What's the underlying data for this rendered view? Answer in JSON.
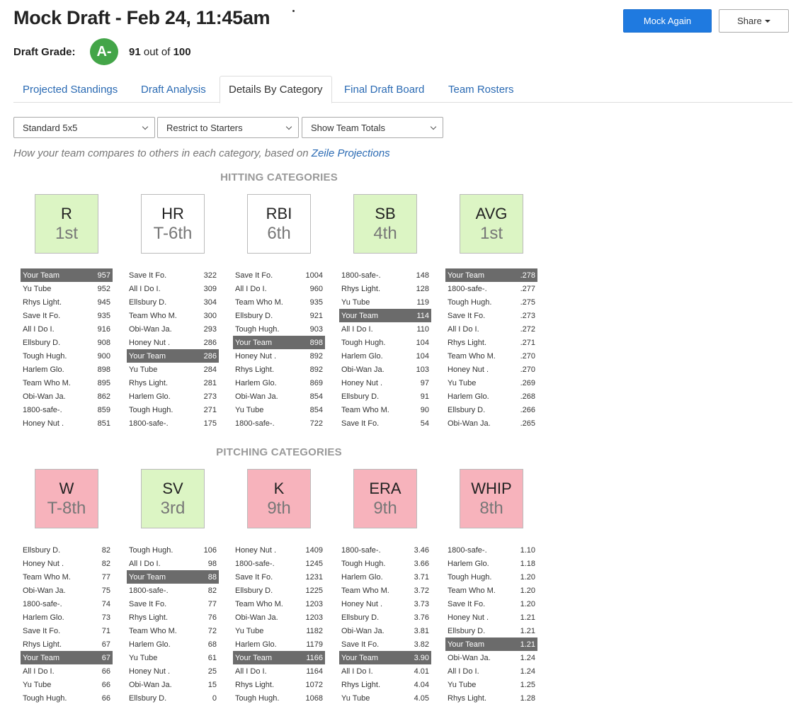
{
  "header": {
    "title": "Mock Draft - Feb 24, 11:45am",
    "mock_again_label": "Mock Again",
    "share_label": "Share"
  },
  "grade": {
    "label": "Draft Grade:",
    "letter": "A-",
    "score": "91",
    "out_of_text": "out of",
    "max": "100",
    "badge_color": "#43a548"
  },
  "tabs": [
    {
      "label": "Projected Standings",
      "active": false
    },
    {
      "label": "Draft Analysis",
      "active": false
    },
    {
      "label": "Details By Category",
      "active": true
    },
    {
      "label": "Final Draft Board",
      "active": false
    },
    {
      "label": "Team Rosters",
      "active": false
    }
  ],
  "filters": {
    "format": "Standard 5x5",
    "roster": "Restrict to Starters",
    "totals": "Show Team Totals"
  },
  "description": {
    "text": "How your team compares to others in each category, based on",
    "link": "Zeile Projections"
  },
  "colors": {
    "good": "#dcf5c4",
    "bad": "#f7b3bc",
    "neutral": "#ffffff",
    "your_team_row": "#6b6b6b",
    "link": "#2a6ab3",
    "primary_button": "#1f7ae0"
  },
  "hitting": {
    "heading": "HITTING CATEGORIES",
    "categories": [
      {
        "abbr": "R",
        "rank": "1st",
        "status": "good",
        "rows": [
          [
            "Your Team",
            "957"
          ],
          [
            "Yu Tube",
            "952"
          ],
          [
            "Rhys Light.",
            "945"
          ],
          [
            "Save It Fo.",
            "935"
          ],
          [
            "All I Do I.",
            "916"
          ],
          [
            "Ellsbury D.",
            "908"
          ],
          [
            "Tough Hugh.",
            "900"
          ],
          [
            "Harlem Glo.",
            "898"
          ],
          [
            "Team Who M.",
            "895"
          ],
          [
            "Obi-Wan Ja.",
            "862"
          ],
          [
            "1800-safe-.",
            "859"
          ],
          [
            "Honey Nut .",
            "851"
          ]
        ]
      },
      {
        "abbr": "HR",
        "rank": "T-6th",
        "status": "neutral",
        "rows": [
          [
            "Save It Fo.",
            "322"
          ],
          [
            "All I Do I.",
            "309"
          ],
          [
            "Ellsbury D.",
            "304"
          ],
          [
            "Team Who M.",
            "300"
          ],
          [
            "Obi-Wan Ja.",
            "293"
          ],
          [
            "Honey Nut .",
            "286"
          ],
          [
            "Your Team",
            "286"
          ],
          [
            "Yu Tube",
            "284"
          ],
          [
            "Rhys Light.",
            "281"
          ],
          [
            "Harlem Glo.",
            "273"
          ],
          [
            "Tough Hugh.",
            "271"
          ],
          [
            "1800-safe-.",
            "175"
          ]
        ]
      },
      {
        "abbr": "RBI",
        "rank": "6th",
        "status": "neutral",
        "rows": [
          [
            "Save It Fo.",
            "1004"
          ],
          [
            "All I Do I.",
            "960"
          ],
          [
            "Team Who M.",
            "935"
          ],
          [
            "Ellsbury D.",
            "921"
          ],
          [
            "Tough Hugh.",
            "903"
          ],
          [
            "Your Team",
            "898"
          ],
          [
            "Honey Nut .",
            "892"
          ],
          [
            "Rhys Light.",
            "892"
          ],
          [
            "Harlem Glo.",
            "869"
          ],
          [
            "Obi-Wan Ja.",
            "854"
          ],
          [
            "Yu Tube",
            "854"
          ],
          [
            "1800-safe-.",
            "722"
          ]
        ]
      },
      {
        "abbr": "SB",
        "rank": "4th",
        "status": "good",
        "rows": [
          [
            "1800-safe-.",
            "148"
          ],
          [
            "Rhys Light.",
            "128"
          ],
          [
            "Yu Tube",
            "119"
          ],
          [
            "Your Team",
            "114"
          ],
          [
            "All I Do I.",
            "110"
          ],
          [
            "Tough Hugh.",
            "104"
          ],
          [
            "Harlem Glo.",
            "104"
          ],
          [
            "Obi-Wan Ja.",
            "103"
          ],
          [
            "Honey Nut .",
            "97"
          ],
          [
            "Ellsbury D.",
            "91"
          ],
          [
            "Team Who M.",
            "90"
          ],
          [
            "Save It Fo.",
            "54"
          ]
        ]
      },
      {
        "abbr": "AVG",
        "rank": "1st",
        "status": "good",
        "rows": [
          [
            "Your Team",
            ".278"
          ],
          [
            "1800-safe-.",
            ".277"
          ],
          [
            "Tough Hugh.",
            ".275"
          ],
          [
            "Save It Fo.",
            ".273"
          ],
          [
            "All I Do I.",
            ".272"
          ],
          [
            "Rhys Light.",
            ".271"
          ],
          [
            "Team Who M.",
            ".270"
          ],
          [
            "Honey Nut .",
            ".270"
          ],
          [
            "Yu Tube",
            ".269"
          ],
          [
            "Harlem Glo.",
            ".268"
          ],
          [
            "Ellsbury D.",
            ".266"
          ],
          [
            "Obi-Wan Ja.",
            ".265"
          ]
        ]
      }
    ]
  },
  "pitching": {
    "heading": "PITCHING CATEGORIES",
    "categories": [
      {
        "abbr": "W",
        "rank": "T-8th",
        "status": "bad",
        "rows": [
          [
            "Ellsbury D.",
            "82"
          ],
          [
            "Honey Nut .",
            "82"
          ],
          [
            "Team Who M.",
            "77"
          ],
          [
            "Obi-Wan Ja.",
            "75"
          ],
          [
            "1800-safe-.",
            "74"
          ],
          [
            "Harlem Glo.",
            "73"
          ],
          [
            "Save It Fo.",
            "71"
          ],
          [
            "Rhys Light.",
            "67"
          ],
          [
            "Your Team",
            "67"
          ],
          [
            "All I Do I.",
            "66"
          ],
          [
            "Yu Tube",
            "66"
          ],
          [
            "Tough Hugh.",
            "66"
          ]
        ]
      },
      {
        "abbr": "SV",
        "rank": "3rd",
        "status": "good",
        "rows": [
          [
            "Tough Hugh.",
            "106"
          ],
          [
            "All I Do I.",
            "98"
          ],
          [
            "Your Team",
            "88"
          ],
          [
            "1800-safe-.",
            "82"
          ],
          [
            "Save It Fo.",
            "77"
          ],
          [
            "Rhys Light.",
            "76"
          ],
          [
            "Team Who M.",
            "72"
          ],
          [
            "Harlem Glo.",
            "68"
          ],
          [
            "Yu Tube",
            "61"
          ],
          [
            "Honey Nut .",
            "25"
          ],
          [
            "Obi-Wan Ja.",
            "15"
          ],
          [
            "Ellsbury D.",
            "0"
          ]
        ]
      },
      {
        "abbr": "K",
        "rank": "9th",
        "status": "bad",
        "rows": [
          [
            "Honey Nut .",
            "1409"
          ],
          [
            "1800-safe-.",
            "1245"
          ],
          [
            "Save It Fo.",
            "1231"
          ],
          [
            "Ellsbury D.",
            "1225"
          ],
          [
            "Team Who M.",
            "1203"
          ],
          [
            "Obi-Wan Ja.",
            "1203"
          ],
          [
            "Yu Tube",
            "1182"
          ],
          [
            "Harlem Glo.",
            "1179"
          ],
          [
            "Your Team",
            "1166"
          ],
          [
            "All I Do I.",
            "1164"
          ],
          [
            "Rhys Light.",
            "1072"
          ],
          [
            "Tough Hugh.",
            "1068"
          ]
        ]
      },
      {
        "abbr": "ERA",
        "rank": "9th",
        "status": "bad",
        "rows": [
          [
            "1800-safe-.",
            "3.46"
          ],
          [
            "Tough Hugh.",
            "3.66"
          ],
          [
            "Harlem Glo.",
            "3.71"
          ],
          [
            "Team Who M.",
            "3.72"
          ],
          [
            "Honey Nut .",
            "3.73"
          ],
          [
            "Ellsbury D.",
            "3.76"
          ],
          [
            "Obi-Wan Ja.",
            "3.81"
          ],
          [
            "Save It Fo.",
            "3.82"
          ],
          [
            "Your Team",
            "3.90"
          ],
          [
            "All I Do I.",
            "4.01"
          ],
          [
            "Rhys Light.",
            "4.04"
          ],
          [
            "Yu Tube",
            "4.05"
          ]
        ]
      },
      {
        "abbr": "WHIP",
        "rank": "8th",
        "status": "bad",
        "rows": [
          [
            "1800-safe-.",
            "1.10"
          ],
          [
            "Harlem Glo.",
            "1.18"
          ],
          [
            "Tough Hugh.",
            "1.20"
          ],
          [
            "Team Who M.",
            "1.20"
          ],
          [
            "Save It Fo.",
            "1.20"
          ],
          [
            "Honey Nut .",
            "1.21"
          ],
          [
            "Ellsbury D.",
            "1.21"
          ],
          [
            "Your Team",
            "1.21"
          ],
          [
            "Obi-Wan Ja.",
            "1.24"
          ],
          [
            "All I Do I.",
            "1.24"
          ],
          [
            "Yu Tube",
            "1.25"
          ],
          [
            "Rhys Light.",
            "1.28"
          ]
        ]
      }
    ]
  }
}
